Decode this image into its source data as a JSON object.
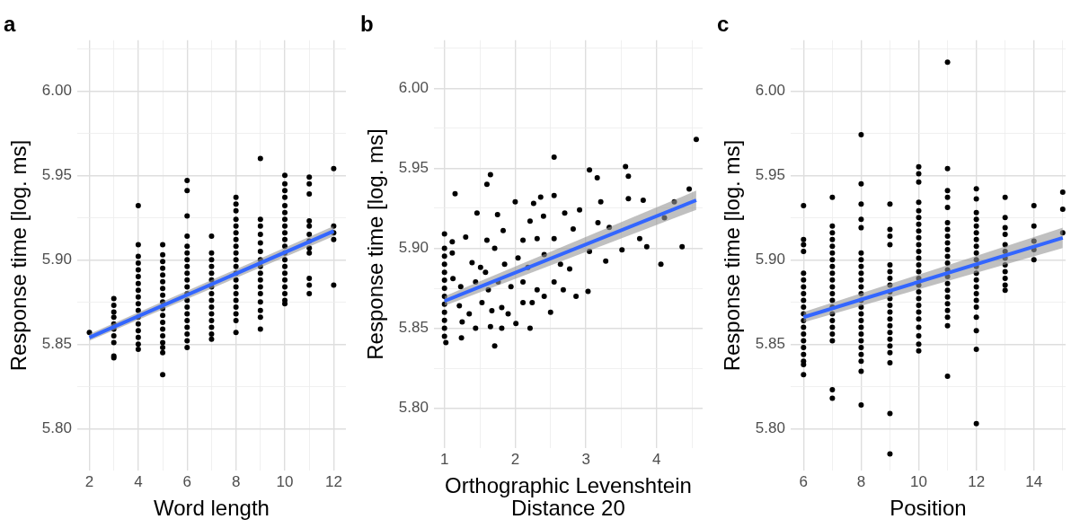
{
  "chart_data": [
    {
      "type": "scatter",
      "title": "a",
      "xlabel": "Word length",
      "ylabel": "Response time [log. ms]",
      "grid": true,
      "legend": false,
      "xlim": [
        1.5,
        12.5
      ],
      "xticks": [
        2,
        {
          "value": 3,
          "label": null
        },
        4,
        {
          "value": 5,
          "label": null
        },
        6,
        {
          "value": 7,
          "label": null
        },
        8,
        {
          "value": 9,
          "label": null
        },
        10,
        {
          "value": 11,
          "label": null
        },
        12
      ],
      "ylim": [
        5.775,
        6.03
      ],
      "yticks": [
        {
          "value": 5.8,
          "label": "5.80"
        },
        {
          "value": 5.825,
          "label": null
        },
        {
          "value": 5.85,
          "label": "5.85"
        },
        {
          "value": 5.875,
          "label": null
        },
        {
          "value": 5.9,
          "label": "5.90"
        },
        {
          "value": 5.925,
          "label": null
        },
        {
          "value": 5.95,
          "label": "5.95"
        },
        {
          "value": 5.975,
          "label": null
        },
        {
          "value": 6.0,
          "label": "6.00"
        },
        {
          "value": 6.025,
          "label": null
        }
      ],
      "series": [
        {
          "color": "#000000",
          "marker": "circle",
          "x": [
            2,
            3,
            3,
            3,
            3,
            3,
            3,
            3,
            3,
            3,
            3,
            4,
            4,
            4,
            4,
            4,
            4,
            4,
            4,
            4,
            4,
            4,
            4,
            4,
            4,
            4,
            4,
            4,
            5,
            5,
            5,
            5,
            5,
            5,
            5,
            5,
            5,
            5,
            5,
            5,
            5,
            5,
            5,
            5,
            5,
            5,
            6,
            6,
            6,
            6,
            6,
            6,
            6,
            6,
            6,
            6,
            6,
            6,
            6,
            6,
            6,
            6,
            6,
            6,
            6,
            6,
            7,
            7,
            7,
            7,
            7,
            7,
            7,
            7,
            7,
            7,
            7,
            7,
            7,
            7,
            7,
            8,
            8,
            8,
            8,
            8,
            8,
            8,
            8,
            8,
            8,
            8,
            8,
            8,
            8,
            8,
            8,
            8,
            8,
            8,
            8,
            9,
            9,
            9,
            9,
            9,
            9,
            9,
            9,
            9,
            9,
            9,
            9,
            9,
            9,
            9,
            9,
            10,
            10,
            10,
            10,
            10,
            10,
            10,
            10,
            10,
            10,
            10,
            10,
            10,
            10,
            10,
            10,
            10,
            10,
            10,
            10,
            11,
            11,
            11,
            11,
            11,
            11,
            11,
            11,
            11,
            11,
            11,
            11,
            12,
            12,
            12,
            12,
            12
          ],
          "values": [
            5.857,
            5.877,
            5.873,
            5.869,
            5.866,
            5.862,
            5.859,
            5.855,
            5.851,
            5.843,
            5.842,
            5.932,
            5.909,
            5.902,
            5.898,
            5.894,
            5.89,
            5.886,
            5.882,
            5.878,
            5.874,
            5.87,
            5.866,
            5.862,
            5.858,
            5.854,
            5.85,
            5.847,
            5.909,
            5.903,
            5.899,
            5.895,
            5.891,
            5.887,
            5.883,
            5.879,
            5.875,
            5.871,
            5.867,
            5.863,
            5.859,
            5.855,
            5.851,
            5.848,
            5.845,
            5.832,
            5.947,
            5.941,
            5.926,
            5.914,
            5.908,
            5.904,
            5.9,
            5.896,
            5.892,
            5.888,
            5.884,
            5.88,
            5.876,
            5.872,
            5.868,
            5.864,
            5.86,
            5.856,
            5.852,
            5.848,
            5.914,
            5.904,
            5.9,
            5.896,
            5.892,
            5.888,
            5.884,
            5.88,
            5.876,
            5.872,
            5.868,
            5.864,
            5.86,
            5.856,
            5.853,
            5.937,
            5.933,
            5.929,
            5.924,
            5.92,
            5.916,
            5.912,
            5.908,
            5.904,
            5.9,
            5.896,
            5.892,
            5.888,
            5.884,
            5.88,
            5.876,
            5.872,
            5.868,
            5.864,
            5.857,
            5.96,
            5.924,
            5.92,
            5.915,
            5.91,
            5.905,
            5.9,
            5.896,
            5.892,
            5.888,
            5.884,
            5.88,
            5.875,
            5.87,
            5.866,
            5.859,
            5.95,
            5.945,
            5.941,
            5.937,
            5.932,
            5.928,
            5.924,
            5.92,
            5.916,
            5.912,
            5.908,
            5.904,
            5.9,
            5.896,
            5.892,
            5.888,
            5.884,
            5.88,
            5.876,
            5.874,
            5.949,
            5.945,
            5.939,
            5.923,
            5.92,
            5.915,
            5.911,
            5.907,
            5.904,
            5.889,
            5.885,
            5.88,
            5.954,
            5.92,
            5.916,
            5.912,
            5.885
          ]
        },
        {
          "type": "line",
          "color": "#3366ff",
          "x": [
            2,
            12
          ],
          "values": [
            5.854,
            5.917
          ],
          "lower": [
            5.852,
            5.914
          ],
          "upper": [
            5.856,
            5.92
          ]
        }
      ]
    },
    {
      "type": "scatter",
      "title": "b",
      "xlabel": "Orthographic Levenshtein Distance 20",
      "ylabel": "Response time [log. ms]",
      "grid": true,
      "legend": false,
      "xlim": [
        0.85,
        4.65
      ],
      "xticks": [
        1,
        {
          "value": 1.5,
          "label": null
        },
        2,
        {
          "value": 2.5,
          "label": null
        },
        3,
        {
          "value": 3.5,
          "label": null
        },
        4,
        {
          "value": 4.5,
          "label": null
        }
      ],
      "ylim": [
        5.775,
        6.03
      ],
      "yticks": [
        {
          "value": 5.8,
          "label": "5.80"
        },
        {
          "value": 5.825,
          "label": null
        },
        {
          "value": 5.85,
          "label": "5.85"
        },
        {
          "value": 5.875,
          "label": null
        },
        {
          "value": 5.9,
          "label": "5.90"
        },
        {
          "value": 5.925,
          "label": null
        },
        {
          "value": 5.95,
          "label": "5.95"
        },
        {
          "value": 5.975,
          "label": null
        },
        {
          "value": 6.0,
          "label": "6.00"
        },
        {
          "value": 6.025,
          "label": null
        }
      ],
      "series": [
        {
          "color": "#000000",
          "marker": "circle",
          "x": [
            4.56,
            2.55,
            3.05,
            3.56,
            1.65,
            1.6,
            1.15,
            3.16,
            3.6,
            4.46,
            2.0,
            2.26,
            2.36,
            2.55,
            1.46,
            1.75,
            3.21,
            3.6,
            3.81,
            4.25,
            4.11,
            2.21,
            2.4,
            2.7,
            2.91,
            1.11,
            1.3,
            1.6,
            1.83,
            2.11,
            2.31,
            2.55,
            2.82,
            3.17,
            3.33,
            3.76,
            3.86,
            4.36,
            4.06,
            3.51,
            3.28,
            3.05,
            1.11,
            1.39,
            1.51,
            1.71,
            1.85,
            2.04,
            2.18,
            2.41,
            2.64,
            2.77,
            2.86,
            3.03,
            1.12,
            1.23,
            1.44,
            1.62,
            1.76,
            1.94,
            2.11,
            2.31,
            2.55,
            2.68,
            1.21,
            1.35,
            1.53,
            1.67,
            1.81,
            1.9,
            2.11,
            2.24,
            2.41,
            2.5,
            1.25,
            1.44,
            1.65,
            1.81,
            2.01,
            2.21,
            1.24,
            1.71,
            1.02,
            1.58,
            1,
            1,
            1,
            1,
            1,
            1,
            1,
            1,
            1,
            1,
            1,
            1,
            1
          ],
          "values": [
            5.968,
            5.957,
            5.949,
            5.951,
            5.946,
            5.94,
            5.934,
            5.944,
            5.945,
            5.937,
            5.929,
            5.928,
            5.932,
            5.933,
            5.922,
            5.921,
            5.929,
            5.931,
            5.93,
            5.929,
            5.919,
            5.917,
            5.92,
            5.922,
            5.924,
            5.904,
            5.907,
            5.905,
            5.911,
            5.905,
            5.906,
            5.906,
            5.912,
            5.916,
            5.913,
            5.906,
            5.901,
            5.901,
            5.89,
            5.899,
            5.892,
            5.898,
            5.897,
            5.891,
            5.888,
            5.9,
            5.89,
            5.894,
            5.888,
            5.896,
            5.89,
            5.887,
            5.87,
            5.873,
            5.881,
            5.876,
            5.879,
            5.874,
            5.879,
            5.876,
            5.879,
            5.874,
            5.879,
            5.874,
            5.864,
            5.859,
            5.866,
            5.861,
            5.863,
            5.859,
            5.866,
            5.866,
            5.87,
            5.86,
            5.854,
            5.85,
            5.851,
            5.85,
            5.853,
            5.85,
            5.844,
            5.839,
            5.841,
            5.885,
            5.909,
            5.9,
            5.895,
            5.89,
            5.885,
            5.88,
            5.875,
            5.87,
            5.865,
            5.86,
            5.855,
            5.85,
            5.845
          ]
        },
        {
          "type": "line",
          "color": "#3366ff",
          "x": [
            1,
            4.56
          ],
          "values": [
            5.867,
            5.93
          ],
          "lower": [
            5.864,
            5.924
          ],
          "upper": [
            5.87,
            5.936
          ]
        }
      ]
    },
    {
      "type": "scatter",
      "title": "c",
      "xlabel": "Position",
      "ylabel": "Response time [log. ms]",
      "grid": true,
      "legend": false,
      "xlim": [
        5.55,
        15.1
      ],
      "xticks": [
        6,
        {
          "value": 7,
          "label": null
        },
        8,
        {
          "value": 9,
          "label": null
        },
        10,
        {
          "value": 11,
          "label": null
        },
        12,
        {
          "value": 13,
          "label": null
        },
        14,
        {
          "value": 15,
          "label": null
        }
      ],
      "ylim": [
        5.775,
        6.03
      ],
      "yticks": [
        {
          "value": 5.8,
          "label": "5.80"
        },
        {
          "value": 5.825,
          "label": null
        },
        {
          "value": 5.85,
          "label": "5.85"
        },
        {
          "value": 5.875,
          "label": null
        },
        {
          "value": 5.9,
          "label": "5.90"
        },
        {
          "value": 5.925,
          "label": null
        },
        {
          "value": 5.95,
          "label": "5.95"
        },
        {
          "value": 5.975,
          "label": null
        },
        {
          "value": 6.0,
          "label": "6.00"
        },
        {
          "value": 6.025,
          "label": null
        }
      ],
      "series": [
        {
          "color": "#000000",
          "marker": "circle",
          "x": [
            6,
            6,
            6,
            6,
            6,
            6,
            6,
            6,
            6,
            6,
            6,
            6,
            6,
            6,
            6,
            6,
            6,
            6,
            6,
            6,
            7,
            7,
            7,
            7,
            7,
            7,
            7,
            7,
            7,
            7,
            7,
            7,
            7,
            7,
            7,
            7,
            7,
            7,
            7,
            7,
            7,
            8,
            8,
            8,
            8,
            8,
            8,
            8,
            8,
            8,
            8,
            8,
            8,
            8,
            8,
            8,
            8,
            8,
            8,
            8,
            8,
            8,
            8,
            8,
            8,
            9,
            9,
            9,
            9,
            9,
            9,
            9,
            9,
            9,
            9,
            9,
            9,
            9,
            9,
            9,
            9,
            9,
            9,
            9,
            9,
            9,
            10,
            10,
            10,
            10,
            10,
            10,
            10,
            10,
            10,
            10,
            10,
            10,
            10,
            10,
            10,
            10,
            10,
            10,
            10,
            10,
            10,
            10,
            10,
            10,
            10,
            11,
            11,
            11,
            11,
            11,
            11,
            11,
            11,
            11,
            11,
            11,
            11,
            11,
            11,
            11,
            11,
            11,
            11,
            11,
            11,
            11,
            11,
            12,
            12,
            12,
            12,
            12,
            12,
            12,
            12,
            12,
            12,
            12,
            12,
            12,
            12,
            12,
            12,
            12,
            12,
            12,
            12,
            12,
            13,
            13,
            13,
            13,
            13,
            13,
            13,
            13,
            13,
            13,
            13,
            13,
            14,
            14,
            14,
            14,
            14,
            15,
            15,
            15
          ],
          "values": [
            5.932,
            5.912,
            5.909,
            5.905,
            5.892,
            5.888,
            5.884,
            5.88,
            5.876,
            5.872,
            5.868,
            5.864,
            5.86,
            5.856,
            5.852,
            5.848,
            5.844,
            5.84,
            5.838,
            5.832,
            5.937,
            5.92,
            5.916,
            5.912,
            5.908,
            5.904,
            5.9,
            5.896,
            5.892,
            5.888,
            5.884,
            5.88,
            5.876,
            5.872,
            5.868,
            5.864,
            5.86,
            5.856,
            5.852,
            5.823,
            5.818,
            5.974,
            5.945,
            5.933,
            5.924,
            5.919,
            5.904,
            5.9,
            5.896,
            5.892,
            5.888,
            5.884,
            5.88,
            5.876,
            5.872,
            5.868,
            5.864,
            5.86,
            5.856,
            5.852,
            5.848,
            5.844,
            5.84,
            5.834,
            5.814,
            5.933,
            5.918,
            5.914,
            5.909,
            5.897,
            5.893,
            5.889,
            5.885,
            5.881,
            5.877,
            5.873,
            5.869,
            5.865,
            5.861,
            5.857,
            5.853,
            5.849,
            5.845,
            5.839,
            5.809,
            5.785,
            5.955,
            5.951,
            5.946,
            5.934,
            5.929,
            5.925,
            5.921,
            5.917,
            5.913,
            5.909,
            5.905,
            5.901,
            5.897,
            5.893,
            5.889,
            5.885,
            5.881,
            5.877,
            5.873,
            5.869,
            5.865,
            5.86,
            5.855,
            5.85,
            5.846,
            6.017,
            5.954,
            5.941,
            5.937,
            5.931,
            5.922,
            5.918,
            5.914,
            5.91,
            5.906,
            5.902,
            5.898,
            5.894,
            5.89,
            5.886,
            5.882,
            5.878,
            5.874,
            5.87,
            5.866,
            5.861,
            5.831,
            5.942,
            5.936,
            5.928,
            5.924,
            5.92,
            5.916,
            5.912,
            5.908,
            5.904,
            5.9,
            5.896,
            5.892,
            5.888,
            5.884,
            5.88,
            5.876,
            5.872,
            5.866,
            5.858,
            5.847,
            5.803,
            5.937,
            5.925,
            5.919,
            5.915,
            5.909,
            5.905,
            5.901,
            5.897,
            5.893,
            5.889,
            5.885,
            5.882,
            5.932,
            5.92,
            5.911,
            5.906,
            5.9,
            5.94,
            5.93,
            5.916
          ]
        },
        {
          "type": "line",
          "color": "#3366ff",
          "x": [
            6,
            15
          ],
          "values": [
            5.866,
            5.913
          ],
          "lower": [
            5.863,
            5.907
          ],
          "upper": [
            5.869,
            5.919
          ]
        }
      ]
    }
  ]
}
